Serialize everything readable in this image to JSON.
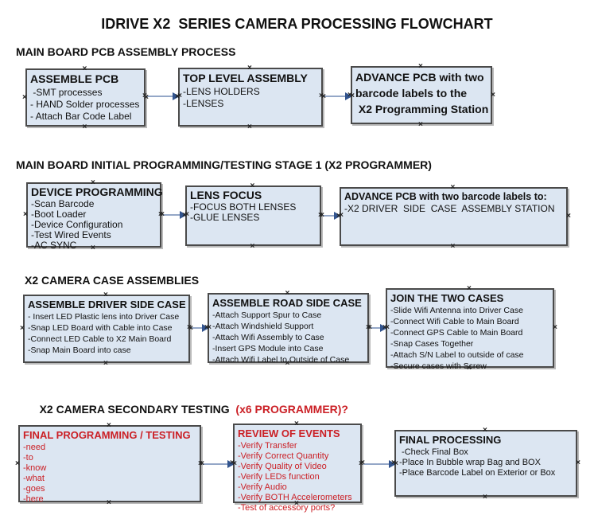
{
  "page": {
    "title": "IDRIVE X2  SERIES CAMERA PROCESSING FLOWCHART"
  },
  "icons": {
    "anchor_glyph": "×"
  },
  "colors": {
    "box_fill": "#dce6f2",
    "box_border": "#4a4a4a",
    "accent_red": "#cb2026",
    "arrow_line": "#94a7c7",
    "arrow_head": "#32548e"
  },
  "sections": [
    {
      "heading": "MAIN BOARD PCB ASSEMBLY PROCESS",
      "boxes": [
        {
          "title": "ASSEMBLE PCB",
          "items": [
            " -SMT processes",
            "- HAND Solder processes",
            "- Attach Bar Code Label"
          ]
        },
        {
          "title": "TOP LEVEL ASSEMBLY",
          "items": [
            "-LENS HOLDERS",
            "-LENSES"
          ]
        },
        {
          "bold_lines": [
            "ADVANCE PCB with two",
            "barcode labels to the",
            " X2 Programming Station"
          ]
        }
      ]
    },
    {
      "heading": "MAIN BOARD INITIAL PROGRAMMING/TESTING STAGE 1 (X2 PROGRAMMER)",
      "boxes": [
        {
          "title": "DEVICE PROGRAMMING",
          "items": [
            "-Scan Barcode",
            "-Boot Loader",
            "-Device Configuration",
            "-Test Wired Events",
            "-AC SYNC"
          ]
        },
        {
          "title": "LENS FOCUS",
          "items": [
            "-FOCUS BOTH LENSES",
            "-GLUE LENSES"
          ]
        },
        {
          "title": "ADVANCE PCB with two barcode labels to:",
          "items": [
            "-X2 DRIVER  SIDE  CASE  ASSEMBLY STATION"
          ]
        }
      ]
    },
    {
      "heading": "X2 CAMERA CASE ASSEMBLIES",
      "boxes": [
        {
          "title": "ASSEMBLE DRIVER SIDE CASE",
          "items": [
            "- Insert LED Plastic lens into Driver Case",
            "-Snap LED Board with Cable into Case",
            "-Connect LED Cable to X2 Main Board",
            "-Snap Main Board into case"
          ]
        },
        {
          "title": "ASSEMBLE ROAD SIDE CASE",
          "items": [
            "-Attach Support Spur to Case",
            "-Attach Windshield Support",
            "-Attach Wifi Assembly to Case",
            "-Insert GPS Module into Case",
            "-Attach Wifi Label to Outside of Case"
          ]
        },
        {
          "title": "JOIN THE TWO CASES",
          "items": [
            "-Slide Wifi Antenna into Driver Case",
            "-Connect Wifi Cable to Main Board",
            "-Connect GPS Cable to Main Board",
            "-Snap Cases Together",
            "-Attach S/N Label to outside of case",
            "-Secure cases with Screw"
          ]
        }
      ]
    },
    {
      "heading_black": "X2 CAMERA SECONDARY TESTING ",
      "heading_red": " (x6 PROGRAMMER)?",
      "boxes": [
        {
          "title": "FINAL PROGRAMMING / TESTING",
          "items": [
            "-need",
            "-to",
            "-know",
            "-what",
            "-goes",
            "-here"
          ]
        },
        {
          "title": "REVIEW OF EVENTS",
          "items": [
            "-Verify Transfer",
            "-Verify Correct Quantity",
            "-Verify Quality of Video",
            "-Verify LEDs function",
            "-Verify Audio",
            "-Verify BOTH Accelerometers",
            "-Test of accessory ports?"
          ]
        },
        {
          "title": "FINAL PROCESSING",
          "items": [
            " -Check Final Box",
            "-Place In Bubble wrap Bag and BOX",
            "-Place Barcode Label on Exterior or Box"
          ]
        }
      ]
    }
  ]
}
